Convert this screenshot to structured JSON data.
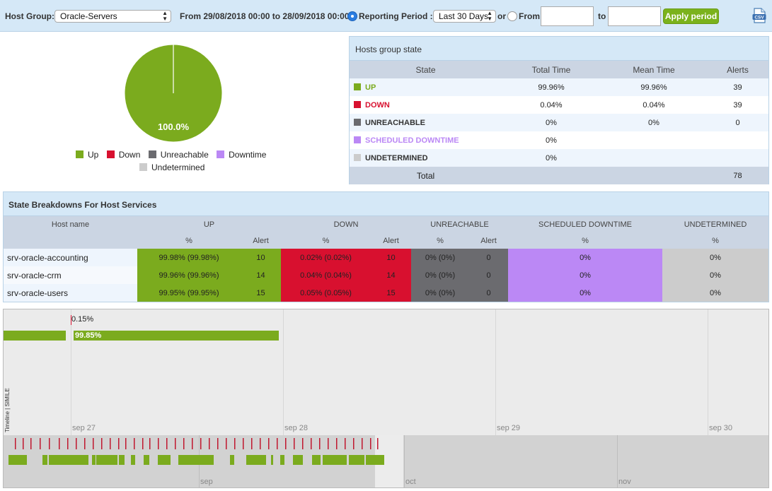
{
  "toolbar": {
    "host_group_label": "Host Group:",
    "host_group_value": "Oracle-Servers",
    "range_text": "From 29/08/2018 00:00 to 28/09/2018 00:00",
    "reporting_period_label": "Reporting Period :",
    "reporting_period_value": "Last 30 Days",
    "or_label": "or",
    "from_label": "From",
    "to_label": "to",
    "apply_label": "Apply period",
    "export_icon": "csv-icon"
  },
  "pie": {
    "slice_label": "100.0%",
    "legend": [
      {
        "label": "Up",
        "color": "#7bab1e"
      },
      {
        "label": "Down",
        "color": "#d8102f"
      },
      {
        "label": "Unreachable",
        "color": "#6b6b6f"
      },
      {
        "label": "Downtime",
        "color": "#bb88f5"
      },
      {
        "label": "Undetermined",
        "color": "#cccccc"
      }
    ]
  },
  "hosts_group_state": {
    "title": "Hosts group state",
    "columns": [
      "State",
      "Total Time",
      "Mean Time",
      "Alerts"
    ],
    "rows": [
      {
        "state": "UP",
        "color": "#7bab1e",
        "total": "99.96%",
        "mean": "99.96%",
        "alerts": "39"
      },
      {
        "state": "DOWN",
        "color": "#d8102f",
        "total": "0.04%",
        "mean": "0.04%",
        "alerts": "39"
      },
      {
        "state": "UNREACHABLE",
        "color": "#6b6b6f",
        "total": "0%",
        "mean": "0%",
        "alerts": "0"
      },
      {
        "state": "SCHEDULED DOWNTIME",
        "color": "#bb88f5",
        "total": "0%",
        "mean": "",
        "alerts": ""
      },
      {
        "state": "UNDETERMINED",
        "color": "#cccccc",
        "total": "0%",
        "mean": "",
        "alerts": ""
      }
    ],
    "total_label": "Total",
    "total_alerts": "78"
  },
  "breakdown": {
    "title": "State Breakdowns For Host Services",
    "group_headers": [
      "Host name",
      "UP",
      "DOWN",
      "UNREACHABLE",
      "SCHEDULED DOWNTIME",
      "UNDETERMINED"
    ],
    "sub_headers": [
      "%",
      "Alert",
      "%",
      "Alert",
      "%",
      "Alert",
      "%",
      "%"
    ],
    "rows": [
      {
        "host": "srv-oracle-accounting",
        "up_pct": "99.98% (99.98%)",
        "up_alert": "10",
        "down_pct": "0.02% (0.02%)",
        "down_alert": "10",
        "unr_pct": "0% (0%)",
        "unr_alert": "0",
        "sched_pct": "0%",
        "und_pct": "0%"
      },
      {
        "host": "srv-oracle-crm",
        "up_pct": "99.96% (99.96%)",
        "up_alert": "14",
        "down_pct": "0.04% (0.04%)",
        "down_alert": "14",
        "unr_pct": "0% (0%)",
        "unr_alert": "0",
        "sched_pct": "0%",
        "und_pct": "0%"
      },
      {
        "host": "srv-oracle-users",
        "up_pct": "99.95% (99.95%)",
        "up_alert": "15",
        "down_pct": "0.05% (0.05%)",
        "down_alert": "15",
        "unr_pct": "0% (0%)",
        "unr_alert": "0",
        "sched_pct": "0%",
        "und_pct": "0%"
      }
    ]
  },
  "timeline": {
    "down_label": "0.15%",
    "up_label": "99.85%",
    "dates": [
      "sep 27",
      "sep 28",
      "sep 29",
      "sep 30"
    ],
    "overview_months": [
      "sep",
      "oct",
      "nov"
    ],
    "side_label": "Timeline | SIMILE"
  }
}
